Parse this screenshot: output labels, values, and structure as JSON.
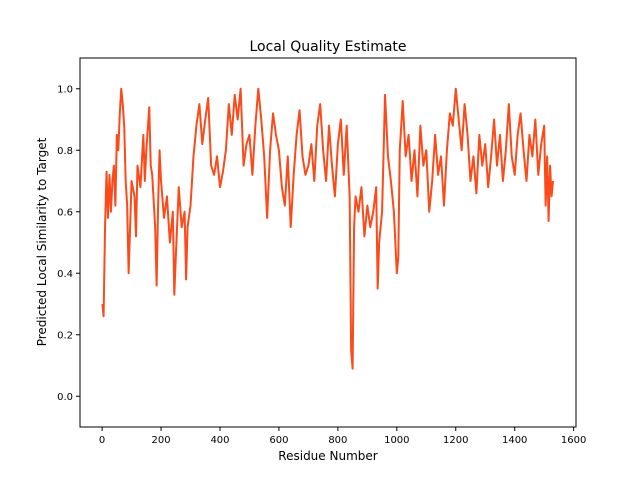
{
  "chart_data": {
    "type": "line",
    "title": "Local Quality Estimate",
    "x_label": "Residue Number",
    "y_label": "Predicted Local Similarity to Target",
    "color": "#fc4a1a",
    "x": [
      1,
      5,
      10,
      15,
      20,
      25,
      30,
      35,
      40,
      45,
      50,
      55,
      60,
      65,
      70,
      75,
      80,
      85,
      90,
      95,
      100,
      110,
      115,
      120,
      130,
      140,
      145,
      150,
      160,
      165,
      170,
      180,
      185,
      190,
      195,
      200,
      210,
      220,
      230,
      240,
      245,
      250,
      260,
      270,
      280,
      285,
      290,
      300,
      310,
      320,
      330,
      340,
      350,
      360,
      370,
      380,
      390,
      400,
      410,
      420,
      430,
      440,
      450,
      460,
      470,
      480,
      490,
      500,
      510,
      520,
      530,
      540,
      550,
      560,
      570,
      580,
      590,
      600,
      610,
      620,
      630,
      640,
      650,
      660,
      670,
      680,
      690,
      700,
      710,
      720,
      730,
      740,
      750,
      760,
      770,
      780,
      790,
      800,
      810,
      820,
      830,
      840,
      845,
      850,
      855,
      860,
      870,
      880,
      890,
      900,
      910,
      920,
      930,
      935,
      940,
      950,
      960,
      970,
      980,
      990,
      1000,
      1005,
      1010,
      1020,
      1030,
      1040,
      1050,
      1060,
      1070,
      1080,
      1090,
      1100,
      1110,
      1120,
      1130,
      1140,
      1150,
      1160,
      1170,
      1180,
      1190,
      1200,
      1210,
      1220,
      1230,
      1240,
      1250,
      1260,
      1270,
      1280,
      1290,
      1300,
      1310,
      1320,
      1330,
      1340,
      1350,
      1360,
      1370,
      1380,
      1390,
      1400,
      1410,
      1420,
      1430,
      1440,
      1450,
      1460,
      1470,
      1480,
      1490,
      1500,
      1505,
      1510,
      1515,
      1520,
      1525,
      1530
    ],
    "values": [
      0.3,
      0.26,
      0.55,
      0.73,
      0.58,
      0.72,
      0.6,
      0.7,
      0.75,
      0.62,
      0.85,
      0.8,
      0.92,
      1.0,
      0.95,
      0.88,
      0.7,
      0.62,
      0.4,
      0.55,
      0.7,
      0.65,
      0.52,
      0.75,
      0.68,
      0.85,
      0.7,
      0.8,
      0.94,
      0.75,
      0.72,
      0.55,
      0.36,
      0.62,
      0.8,
      0.7,
      0.58,
      0.65,
      0.5,
      0.6,
      0.33,
      0.45,
      0.68,
      0.55,
      0.6,
      0.38,
      0.55,
      0.62,
      0.78,
      0.88,
      0.95,
      0.82,
      0.9,
      0.97,
      0.75,
      0.72,
      0.78,
      0.68,
      0.73,
      0.8,
      0.95,
      0.85,
      0.98,
      0.9,
      1.0,
      0.75,
      0.82,
      0.85,
      0.72,
      0.88,
      1.0,
      0.9,
      0.78,
      0.58,
      0.8,
      0.92,
      0.85,
      0.8,
      0.68,
      0.62,
      0.78,
      0.55,
      0.72,
      0.85,
      0.93,
      0.78,
      0.72,
      0.75,
      0.82,
      0.7,
      0.88,
      0.95,
      0.8,
      0.7,
      0.88,
      0.75,
      0.65,
      0.82,
      0.9,
      0.72,
      0.88,
      0.65,
      0.15,
      0.09,
      0.55,
      0.65,
      0.6,
      0.68,
      0.52,
      0.62,
      0.55,
      0.6,
      0.68,
      0.35,
      0.5,
      0.6,
      0.98,
      0.78,
      0.7,
      0.6,
      0.4,
      0.45,
      0.8,
      0.96,
      0.78,
      0.85,
      0.7,
      0.8,
      0.65,
      0.88,
      0.75,
      0.8,
      0.6,
      0.7,
      0.85,
      0.72,
      0.78,
      0.62,
      0.8,
      0.92,
      0.88,
      1.0,
      0.9,
      0.8,
      0.95,
      0.85,
      0.7,
      0.78,
      0.66,
      0.85,
      0.75,
      0.82,
      0.68,
      0.78,
      0.9,
      0.75,
      0.85,
      0.7,
      0.8,
      0.95,
      0.78,
      0.72,
      0.85,
      0.92,
      0.8,
      0.7,
      0.85,
      0.78,
      0.9,
      0.72,
      0.82,
      0.88,
      0.62,
      0.78,
      0.57,
      0.75,
      0.65,
      0.7
    ],
    "xlim": [
      -75,
      1608
    ],
    "ylim": [
      -0.1,
      1.1
    ],
    "xticks": [
      0,
      200,
      400,
      600,
      800,
      1000,
      1200,
      1400,
      1600
    ],
    "yticks": [
      {
        "value": 0,
        "label": "0.0"
      },
      0.2,
      0.4,
      0.6,
      0.8,
      {
        "value": 1,
        "label": "1.0"
      }
    ]
  }
}
